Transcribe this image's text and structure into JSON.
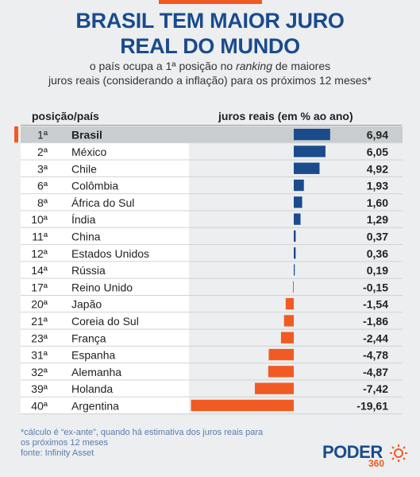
{
  "header": {
    "title_line1": "BRASIL TEM MAIOR JURO",
    "title_line2": "REAL DO MUNDO",
    "subtitle_line1_pre": "o país ocupa a 1ª posição no ",
    "subtitle_line1_em": "ranking",
    "subtitle_line1_post": " de maiores",
    "subtitle_line2": "juros reais (considerando a inflação) para os próximos 12 meses*"
  },
  "column_headers": {
    "left": "posição/país",
    "right": "juros reais (em % ao ano)"
  },
  "colors": {
    "positive": "#1a4b8c",
    "negative": "#f15a22",
    "highlight_row": "#c9cdd0",
    "row_white": "#ffffff",
    "accent": "#f15a22"
  },
  "chart_data": {
    "type": "bar",
    "orientation": "horizontal",
    "title": "BRASIL TEM MAIOR JURO REAL DO MUNDO",
    "subtitle": "o país ocupa a 1ª posição no ranking de maiores juros reais (considerando a inflação) para os próximos 12 meses*",
    "xlabel": "juros reais (em % ao ano)",
    "ylabel": "posição/país",
    "grid": false,
    "legend": "none",
    "rows": [
      {
        "rank": "1ª",
        "country": "Brasil",
        "value": 6.94,
        "label": "6,94",
        "highlight": true
      },
      {
        "rank": "2ª",
        "country": "México",
        "value": 6.05,
        "label": "6,05"
      },
      {
        "rank": "3ª",
        "country": "Chile",
        "value": 4.92,
        "label": "4,92"
      },
      {
        "rank": "6ª",
        "country": "Colômbia",
        "value": 1.93,
        "label": "1,93"
      },
      {
        "rank": "8ª",
        "country": "África do Sul",
        "value": 1.6,
        "label": "1,60"
      },
      {
        "rank": "10ª",
        "country": "Índia",
        "value": 1.29,
        "label": "1,29"
      },
      {
        "rank": "11ª",
        "country": "China",
        "value": 0.37,
        "label": "0,37"
      },
      {
        "rank": "12ª",
        "country": "Estados Unidos",
        "value": 0.36,
        "label": "0,36"
      },
      {
        "rank": "14ª",
        "country": "Rússia",
        "value": 0.19,
        "label": "0,19"
      },
      {
        "rank": "17ª",
        "country": "Reino Unido",
        "value": -0.15,
        "label": "-0,15"
      },
      {
        "rank": "20ª",
        "country": "Japão",
        "value": -1.54,
        "label": "-1,54"
      },
      {
        "rank": "21ª",
        "country": "Coreia do Sul",
        "value": -1.86,
        "label": "-1,86"
      },
      {
        "rank": "23ª",
        "country": "França",
        "value": -2.44,
        "label": "-2,44"
      },
      {
        "rank": "31ª",
        "country": "Espanha",
        "value": -4.78,
        "label": "-4,78"
      },
      {
        "rank": "32ª",
        "country": "Alemanha",
        "value": -4.87,
        "label": "-4,87"
      },
      {
        "rank": "39ª",
        "country": "Holanda",
        "value": -7.42,
        "label": "-7,42"
      },
      {
        "rank": "40ª",
        "country": "Argentina",
        "value": -19.61,
        "label": "-19,61"
      }
    ]
  },
  "footer": {
    "footnote_line1": "*cálculo é “ex-ante”, quando há estimativa dos juros reais para",
    "footnote_line2": "os próximos 12 meses",
    "source": "fonte: Infinity Asset",
    "logo_text": "PODER",
    "logo_number": "360"
  }
}
